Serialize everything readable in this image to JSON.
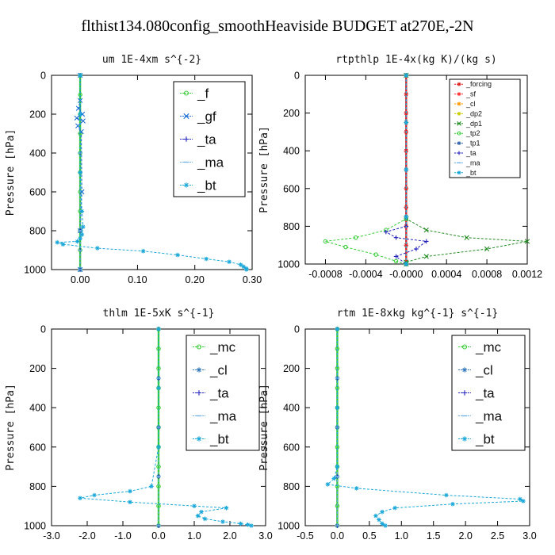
{
  "figure_title": "flthist134.080config_smoothHeaviside  BUDGET at270E,-2N",
  "chart_data": [
    {
      "type": "line",
      "title": "um  1E-4xm s^{-2}",
      "ylabel": "Pressure [hPa]",
      "xlim": [
        -0.05,
        0.3
      ],
      "ylim": [
        1000,
        0
      ],
      "xticks": [
        0.0,
        0.1,
        0.2,
        0.3
      ],
      "xtick_labels": [
        "0.00",
        "0.10",
        "0.20",
        "0.30"
      ],
      "yticks": [
        0,
        200,
        400,
        600,
        800,
        1000
      ],
      "legend": "top-right",
      "series": [
        {
          "name": "_f",
          "color": "#33cc33",
          "marker": "circle",
          "x": [
            0.0,
            0.0,
            0.0,
            0.0,
            0.0,
            0.0,
            0.0,
            0.0,
            0.0,
            0.0,
            0.0
          ],
          "y": [
            0,
            100,
            200,
            300,
            400,
            500,
            600,
            700,
            800,
            900,
            1000
          ]
        },
        {
          "name": "_gf",
          "color": "#1f6fd6",
          "marker": "x",
          "x": [
            0.0,
            0.0,
            -0.003,
            0.004,
            -0.006,
            0.005,
            -0.004,
            0.002,
            0.003,
            0.0,
            0.0
          ],
          "y": [
            0,
            130,
            170,
            200,
            220,
            235,
            260,
            290,
            600,
            800,
            1000
          ]
        },
        {
          "name": "_ta",
          "color": "#2222bb",
          "marker": "plus",
          "x": [
            0.0,
            0.0,
            0.0,
            0.0,
            0.0
          ],
          "y": [
            0,
            400,
            800,
            900,
            1000
          ]
        },
        {
          "name": "_ma",
          "color": "#6aaee8",
          "marker": "dash",
          "x": [
            0.0,
            0.0,
            0.0,
            0.0,
            0.0
          ],
          "y": [
            0,
            400,
            800,
            900,
            1000
          ]
        },
        {
          "name": "_bt",
          "color": "#1aa7d9",
          "marker": "star",
          "x": [
            0.0,
            0.0,
            0.0,
            0.003,
            0.005,
            0.003,
            0.0,
            -0.005,
            -0.04,
            -0.03,
            0.03,
            0.11,
            0.17,
            0.22,
            0.26,
            0.28,
            0.285,
            0.29,
            0.29
          ],
          "y": [
            0,
            200,
            500,
            700,
            780,
            820,
            840,
            855,
            860,
            870,
            890,
            905,
            925,
            945,
            960,
            975,
            985,
            995,
            1000
          ]
        }
      ]
    },
    {
      "type": "line",
      "title": "rtpthlp  1E-4x(kg K)/(kg s)",
      "ylabel": "Pressure [hPa]",
      "xlim": [
        -0.001,
        0.0012
      ],
      "ylim": [
        1000,
        0
      ],
      "xticks": [
        -0.0008,
        -0.0004,
        0.0,
        0.0004,
        0.0008,
        0.0012
      ],
      "xtick_labels": [
        "-0.0008",
        "-0.0004",
        "-0.0000",
        "0.0004",
        "0.0008",
        "0.0012"
      ],
      "yticks": [
        0,
        200,
        400,
        600,
        800,
        1000
      ],
      "legend": "top-right",
      "series": [
        {
          "name": "_forcing",
          "color": "#dd2222",
          "marker": "star",
          "x": [
            0,
            0,
            0,
            0,
            0,
            0,
            0,
            0,
            0,
            0,
            0
          ],
          "y": [
            0,
            100,
            200,
            300,
            400,
            500,
            600,
            700,
            800,
            900,
            1000
          ]
        },
        {
          "name": "_sf",
          "color": "#ff3333",
          "marker": "star",
          "x": [
            0,
            0,
            0,
            0,
            0
          ],
          "y": [
            0,
            250,
            500,
            750,
            1000
          ]
        },
        {
          "name": "_cl",
          "color": "#ff9900",
          "marker": "star",
          "x": [
            0,
            0,
            0,
            0,
            0
          ],
          "y": [
            0,
            250,
            500,
            750,
            1000
          ]
        },
        {
          "name": "_dp2",
          "color": "#cccc00",
          "marker": "star",
          "x": [
            0,
            0,
            0,
            0,
            0
          ],
          "y": [
            0,
            250,
            500,
            750,
            1000
          ]
        },
        {
          "name": "_dp1",
          "color": "#228b22",
          "marker": "x",
          "x": [
            0,
            0,
            0.0002,
            0.0006,
            0.0012,
            0.0008,
            0.0002,
            0.0,
            0.0
          ],
          "y": [
            0,
            760,
            820,
            860,
            880,
            920,
            960,
            990,
            1000
          ]
        },
        {
          "name": "_tp2",
          "color": "#33cc33",
          "marker": "circle",
          "x": [
            0,
            0,
            -0.0002,
            -0.0005,
            -0.0008,
            -0.0006,
            -0.0003,
            -0.0001,
            0.0
          ],
          "y": [
            0,
            760,
            820,
            860,
            880,
            910,
            950,
            985,
            1000
          ]
        },
        {
          "name": "_tp1",
          "color": "#3366aa",
          "marker": "star",
          "x": [
            0,
            0,
            0,
            0,
            0
          ],
          "y": [
            0,
            250,
            500,
            750,
            1000
          ]
        },
        {
          "name": "_ta",
          "color": "#2222bb",
          "marker": "plus",
          "x": [
            0,
            0,
            -0.0002,
            -0.0001,
            0.0002,
            0.0001,
            -0.0001,
            0.0
          ],
          "y": [
            0,
            800,
            830,
            860,
            880,
            920,
            960,
            1000
          ]
        },
        {
          "name": "_ma",
          "color": "#6aaee8",
          "marker": "dash",
          "x": [
            0,
            0,
            0,
            0,
            0
          ],
          "y": [
            0,
            250,
            500,
            750,
            1000
          ]
        },
        {
          "name": "_bt",
          "color": "#1aa7d9",
          "marker": "star",
          "x": [
            0,
            0,
            0,
            0,
            0
          ],
          "y": [
            0,
            250,
            500,
            750,
            1000
          ]
        }
      ]
    },
    {
      "type": "line",
      "title": "thlm  1E-5xK s^{-1}",
      "ylabel": "Pressure [hPa]",
      "xlim": [
        -3.0,
        3.0
      ],
      "ylim": [
        1000,
        0
      ],
      "xticks": [
        -3.0,
        -2.0,
        -1.0,
        0.0,
        1.0,
        2.0,
        3.0
      ],
      "xtick_labels": [
        "-3.0",
        "-2.0",
        "-1.0",
        "0.0",
        "1.0",
        "2.0",
        "3.0"
      ],
      "yticks": [
        0,
        200,
        400,
        600,
        800,
        1000
      ],
      "legend": "top-right",
      "series": [
        {
          "name": "_mc",
          "color": "#33cc33",
          "marker": "circle",
          "x": [
            0,
            0,
            0,
            0,
            0,
            0,
            0,
            0,
            0,
            0,
            0
          ],
          "y": [
            0,
            100,
            200,
            300,
            400,
            500,
            600,
            700,
            800,
            900,
            1000
          ]
        },
        {
          "name": "_cl",
          "color": "#3377bb",
          "marker": "star",
          "x": [
            0,
            0,
            0,
            0,
            0
          ],
          "y": [
            0,
            250,
            500,
            750,
            1000
          ]
        },
        {
          "name": "_ta",
          "color": "#2222bb",
          "marker": "plus",
          "x": [
            0,
            0,
            0,
            0,
            0
          ],
          "y": [
            0,
            250,
            500,
            750,
            1000
          ]
        },
        {
          "name": "_ma",
          "color": "#6aaee8",
          "marker": "dash",
          "x": [
            0,
            0,
            0,
            0,
            0
          ],
          "y": [
            0,
            250,
            500,
            750,
            1000
          ]
        },
        {
          "name": "_bt",
          "color": "#1aa7d9",
          "marker": "star",
          "x": [
            0,
            0,
            0,
            -0.2,
            -0.8,
            -1.8,
            -2.2,
            -0.8,
            1.0,
            1.9,
            1.2,
            1.1,
            1.3,
            1.8,
            2.3,
            2.5,
            2.6
          ],
          "y": [
            0,
            300,
            600,
            800,
            825,
            845,
            860,
            880,
            900,
            910,
            930,
            950,
            965,
            980,
            990,
            995,
            1000
          ]
        }
      ]
    },
    {
      "type": "line",
      "title": "rtm  1E-8xkg kg^{-1} s^{-1}",
      "ylabel": "Pressure [hPa]",
      "xlim": [
        -0.5,
        3.0
      ],
      "ylim": [
        1000,
        0
      ],
      "xticks": [
        -0.5,
        0.0,
        0.5,
        1.0,
        1.5,
        2.0,
        2.5,
        3.0
      ],
      "xtick_labels": [
        "-0.5",
        "0.0",
        "0.5",
        "1.0",
        "1.5",
        "2.0",
        "2.5",
        "3.0"
      ],
      "yticks": [
        0,
        200,
        400,
        600,
        800,
        1000
      ],
      "legend": "top-right",
      "series": [
        {
          "name": "_mc",
          "color": "#33cc33",
          "marker": "circle",
          "x": [
            0,
            0,
            0,
            0,
            0,
            0,
            0,
            0,
            0,
            0,
            0
          ],
          "y": [
            0,
            100,
            200,
            300,
            400,
            500,
            600,
            700,
            800,
            900,
            1000
          ]
        },
        {
          "name": "_cl",
          "color": "#3377bb",
          "marker": "star",
          "x": [
            0,
            0,
            0,
            0,
            0
          ],
          "y": [
            0,
            250,
            500,
            750,
            1000
          ]
        },
        {
          "name": "_ta",
          "color": "#2222bb",
          "marker": "plus",
          "x": [
            0,
            0,
            0,
            0,
            0
          ],
          "y": [
            0,
            250,
            500,
            750,
            1000
          ]
        },
        {
          "name": "_ma",
          "color": "#6aaee8",
          "marker": "dash",
          "x": [
            0,
            0,
            0,
            0,
            0
          ],
          "y": [
            0,
            250,
            500,
            750,
            1000
          ]
        },
        {
          "name": "_bt",
          "color": "#1aa7d9",
          "marker": "star",
          "x": [
            0,
            0,
            0,
            -0.05,
            -0.15,
            0.3,
            1.7,
            2.85,
            2.9,
            1.8,
            0.9,
            0.7,
            0.6,
            0.65,
            0.7,
            0.75
          ],
          "y": [
            0,
            400,
            700,
            760,
            790,
            810,
            845,
            865,
            875,
            890,
            910,
            930,
            950,
            970,
            990,
            1000
          ]
        }
      ]
    }
  ]
}
